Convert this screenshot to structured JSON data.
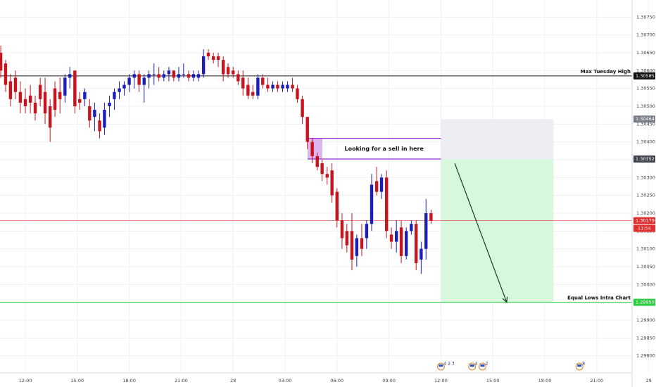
{
  "chart_data": {
    "type": "candlestick",
    "title": "",
    "xlabel": "",
    "ylabel": "",
    "ylim": [
      1.29752,
      1.30798
    ],
    "y_ticks": [
      "1.30750",
      "1.30700",
      "1.30650",
      "1.30600",
      "1.30550",
      "1.30500",
      "1.30450",
      "1.30400",
      "1.30350",
      "1.30300",
      "1.30250",
      "1.30200",
      "1.30150",
      "1.30100",
      "1.30050",
      "1.30000",
      "1.29950",
      "1.29900",
      "1.29850",
      "1.29800"
    ],
    "x_ticks": [
      "12:00",
      "15:00",
      "18:00",
      "21:00",
      "28",
      "03:00",
      "06:00",
      "09:00",
      "12:00",
      "15:00",
      "18:00",
      "21:00",
      "29"
    ],
    "x_tick_hours": [
      0,
      3,
      6,
      9,
      12,
      15,
      18,
      21,
      24,
      27,
      30,
      33,
      36
    ],
    "candles": [
      {
        "t": -1.42,
        "o": 1.3065,
        "h": 1.3067,
        "l": 1.3058,
        "c": 1.306
      },
      {
        "t": -1.14,
        "o": 1.3062,
        "h": 1.3063,
        "l": 1.3054,
        "c": 1.3056
      },
      {
        "t": -0.86,
        "o": 1.3057,
        "h": 1.3059,
        "l": 1.305,
        "c": 1.3052
      },
      {
        "t": -0.57,
        "o": 1.3058,
        "h": 1.306,
        "l": 1.3052,
        "c": 1.3054
      },
      {
        "t": -0.29,
        "o": 1.3054,
        "h": 1.3057,
        "l": 1.3048,
        "c": 1.3051
      },
      {
        "t": 0.0,
        "o": 1.3052,
        "h": 1.3055,
        "l": 1.3048,
        "c": 1.305
      },
      {
        "t": 0.29,
        "o": 1.3053,
        "h": 1.3056,
        "l": 1.3048,
        "c": 1.3051
      },
      {
        "t": 0.57,
        "o": 1.3051,
        "h": 1.3053,
        "l": 1.3046,
        "c": 1.3048
      },
      {
        "t": 0.86,
        "o": 1.3056,
        "h": 1.3058,
        "l": 1.305,
        "c": 1.3052
      },
      {
        "t": 1.14,
        "o": 1.3054,
        "h": 1.3058,
        "l": 1.3045,
        "c": 1.3048
      },
      {
        "t": 1.43,
        "o": 1.305,
        "h": 1.3052,
        "l": 1.304,
        "c": 1.3044
      },
      {
        "t": 1.71,
        "o": 1.3055,
        "h": 1.3057,
        "l": 1.3047,
        "c": 1.3049
      },
      {
        "t": 2.0,
        "o": 1.3054,
        "h": 1.3058,
        "l": 1.3048,
        "c": 1.3052
      },
      {
        "t": 2.29,
        "o": 1.3053,
        "h": 1.3059,
        "l": 1.3051,
        "c": 1.3058
      },
      {
        "t": 2.57,
        "o": 1.3058,
        "h": 1.3061,
        "l": 1.3055,
        "c": 1.3059
      },
      {
        "t": 2.86,
        "o": 1.306,
        "h": 1.306,
        "l": 1.3048,
        "c": 1.305
      },
      {
        "t": 3.14,
        "o": 1.3052,
        "h": 1.3054,
        "l": 1.3049,
        "c": 1.3051
      },
      {
        "t": 3.43,
        "o": 1.3052,
        "h": 1.3055,
        "l": 1.305,
        "c": 1.3054
      },
      {
        "t": 3.71,
        "o": 1.305,
        "h": 1.3052,
        "l": 1.3044,
        "c": 1.3046
      },
      {
        "t": 4.0,
        "o": 1.3047,
        "h": 1.3051,
        "l": 1.3043,
        "c": 1.3049
      },
      {
        "t": 4.29,
        "o": 1.3046,
        "h": 1.3048,
        "l": 1.3041,
        "c": 1.3043
      },
      {
        "t": 4.57,
        "o": 1.3044,
        "h": 1.3051,
        "l": 1.3042,
        "c": 1.3049
      },
      {
        "t": 4.86,
        "o": 1.305,
        "h": 1.3053,
        "l": 1.3047,
        "c": 1.3051
      },
      {
        "t": 5.14,
        "o": 1.3052,
        "h": 1.3055,
        "l": 1.3049,
        "c": 1.3054
      },
      {
        "t": 5.43,
        "o": 1.3054,
        "h": 1.3057,
        "l": 1.3052,
        "c": 1.3055
      },
      {
        "t": 5.71,
        "o": 1.3055,
        "h": 1.3057,
        "l": 1.3053,
        "c": 1.3056
      },
      {
        "t": 6.0,
        "o": 1.3056,
        "h": 1.3059,
        "l": 1.3054,
        "c": 1.3058
      },
      {
        "t": 6.29,
        "o": 1.3058,
        "h": 1.306,
        "l": 1.3055,
        "c": 1.3059
      },
      {
        "t": 6.57,
        "o": 1.3059,
        "h": 1.306,
        "l": 1.3054,
        "c": 1.3056
      },
      {
        "t": 6.86,
        "o": 1.3056,
        "h": 1.3059,
        "l": 1.3051,
        "c": 1.3058
      },
      {
        "t": 7.14,
        "o": 1.3058,
        "h": 1.306,
        "l": 1.3055,
        "c": 1.3059
      },
      {
        "t": 7.43,
        "o": 1.3059,
        "h": 1.3062,
        "l": 1.3056,
        "c": 1.3059
      },
      {
        "t": 7.71,
        "o": 1.3059,
        "h": 1.3061,
        "l": 1.3057,
        "c": 1.3058
      },
      {
        "t": 8.0,
        "o": 1.3058,
        "h": 1.306,
        "l": 1.3057,
        "c": 1.3059
      },
      {
        "t": 8.29,
        "o": 1.3059,
        "h": 1.3061,
        "l": 1.3057,
        "c": 1.306
      },
      {
        "t": 8.57,
        "o": 1.306,
        "h": 1.306,
        "l": 1.3057,
        "c": 1.3058
      },
      {
        "t": 8.86,
        "o": 1.3058,
        "h": 1.3061,
        "l": 1.3057,
        "c": 1.3059
      },
      {
        "t": 9.14,
        "o": 1.3059,
        "h": 1.3062,
        "l": 1.3058,
        "c": 1.3059
      },
      {
        "t": 9.43,
        "o": 1.3059,
        "h": 1.306,
        "l": 1.3057,
        "c": 1.3058
      },
      {
        "t": 9.71,
        "o": 1.3058,
        "h": 1.306,
        "l": 1.3057,
        "c": 1.3059
      },
      {
        "t": 10.0,
        "o": 1.3058,
        "h": 1.306,
        "l": 1.3057,
        "c": 1.3059
      },
      {
        "t": 10.29,
        "o": 1.3059,
        "h": 1.3066,
        "l": 1.3058,
        "c": 1.3064
      },
      {
        "t": 10.57,
        "o": 1.3065,
        "h": 1.3066,
        "l": 1.3063,
        "c": 1.3064
      },
      {
        "t": 10.86,
        "o": 1.3064,
        "h": 1.3065,
        "l": 1.3062,
        "c": 1.3063
      },
      {
        "t": 11.14,
        "o": 1.3064,
        "h": 1.3065,
        "l": 1.3061,
        "c": 1.3063
      },
      {
        "t": 11.43,
        "o": 1.3063,
        "h": 1.3064,
        "l": 1.3057,
        "c": 1.3059
      },
      {
        "t": 11.71,
        "o": 1.3061,
        "h": 1.3062,
        "l": 1.3058,
        "c": 1.3059
      },
      {
        "t": 12.0,
        "o": 1.306,
        "h": 1.3061,
        "l": 1.3058,
        "c": 1.3059
      },
      {
        "t": 12.29,
        "o": 1.3059,
        "h": 1.306,
        "l": 1.3056,
        "c": 1.3057
      },
      {
        "t": 12.57,
        "o": 1.3058,
        "h": 1.306,
        "l": 1.3053,
        "c": 1.3055
      },
      {
        "t": 12.86,
        "o": 1.3056,
        "h": 1.3058,
        "l": 1.3052,
        "c": 1.3053
      },
      {
        "t": 13.14,
        "o": 1.3054,
        "h": 1.3056,
        "l": 1.3052,
        "c": 1.3053
      },
      {
        "t": 13.43,
        "o": 1.3053,
        "h": 1.3059,
        "l": 1.3052,
        "c": 1.3058
      },
      {
        "t": 13.71,
        "o": 1.3058,
        "h": 1.3059,
        "l": 1.3055,
        "c": 1.3056
      },
      {
        "t": 14.0,
        "o": 1.3056,
        "h": 1.3058,
        "l": 1.3054,
        "c": 1.3055
      },
      {
        "t": 14.29,
        "o": 1.3055,
        "h": 1.3057,
        "l": 1.3054,
        "c": 1.3056
      },
      {
        "t": 14.57,
        "o": 1.3056,
        "h": 1.3057,
        "l": 1.3054,
        "c": 1.3055
      },
      {
        "t": 14.86,
        "o": 1.3055,
        "h": 1.3057,
        "l": 1.3054,
        "c": 1.3056
      },
      {
        "t": 15.14,
        "o": 1.3055,
        "h": 1.3057,
        "l": 1.3054,
        "c": 1.3056
      },
      {
        "t": 15.43,
        "o": 1.3056,
        "h": 1.3058,
        "l": 1.3054,
        "c": 1.3055
      },
      {
        "t": 15.71,
        "o": 1.3055,
        "h": 1.3056,
        "l": 1.3051,
        "c": 1.3052
      },
      {
        "t": 16.0,
        "o": 1.3052,
        "h": 1.3053,
        "l": 1.3045,
        "c": 1.3047
      },
      {
        "t": 16.29,
        "o": 1.3047,
        "h": 1.3047,
        "l": 1.3038,
        "c": 1.304
      },
      {
        "t": 16.57,
        "o": 1.304,
        "h": 1.3041,
        "l": 1.3034,
        "c": 1.3036
      },
      {
        "t": 16.86,
        "o": 1.3036,
        "h": 1.3037,
        "l": 1.3032,
        "c": 1.3033
      },
      {
        "t": 17.14,
        "o": 1.3034,
        "h": 1.3035,
        "l": 1.3029,
        "c": 1.3031
      },
      {
        "t": 17.43,
        "o": 1.3031,
        "h": 1.3033,
        "l": 1.3028,
        "c": 1.303
      },
      {
        "t": 17.71,
        "o": 1.3032,
        "h": 1.3034,
        "l": 1.3023,
        "c": 1.3025
      },
      {
        "t": 18.0,
        "o": 1.3026,
        "h": 1.3027,
        "l": 1.3016,
        "c": 1.3018
      },
      {
        "t": 18.29,
        "o": 1.3018,
        "h": 1.302,
        "l": 1.301,
        "c": 1.3013
      },
      {
        "t": 18.57,
        "o": 1.3015,
        "h": 1.3017,
        "l": 1.3009,
        "c": 1.3011
      },
      {
        "t": 18.86,
        "o": 1.3015,
        "h": 1.302,
        "l": 1.3004,
        "c": 1.3007
      },
      {
        "t": 19.14,
        "o": 1.3008,
        "h": 1.3014,
        "l": 1.3005,
        "c": 1.3013
      },
      {
        "t": 19.43,
        "o": 1.3013,
        "h": 1.3017,
        "l": 1.3008,
        "c": 1.301
      },
      {
        "t": 19.71,
        "o": 1.3013,
        "h": 1.3018,
        "l": 1.301,
        "c": 1.3017
      },
      {
        "t": 20.0,
        "o": 1.3017,
        "h": 1.3031,
        "l": 1.3015,
        "c": 1.3028
      },
      {
        "t": 20.29,
        "o": 1.3029,
        "h": 1.3033,
        "l": 1.3025,
        "c": 1.3026
      },
      {
        "t": 20.57,
        "o": 1.3026,
        "h": 1.3031,
        "l": 1.3024,
        "c": 1.303
      },
      {
        "t": 20.86,
        "o": 1.303,
        "h": 1.3032,
        "l": 1.3013,
        "c": 1.3015
      },
      {
        "t": 21.14,
        "o": 1.3014,
        "h": 1.3016,
        "l": 1.301,
        "c": 1.3012
      },
      {
        "t": 21.43,
        "o": 1.3012,
        "h": 1.3018,
        "l": 1.3009,
        "c": 1.3015
      },
      {
        "t": 21.71,
        "o": 1.3016,
        "h": 1.3018,
        "l": 1.3006,
        "c": 1.3008
      },
      {
        "t": 22.0,
        "o": 1.3008,
        "h": 1.3016,
        "l": 1.3007,
        "c": 1.3015
      },
      {
        "t": 22.29,
        "o": 1.3015,
        "h": 1.3018,
        "l": 1.3014,
        "c": 1.3017
      },
      {
        "t": 22.57,
        "o": 1.3017,
        "h": 1.3018,
        "l": 1.3004,
        "c": 1.3006
      },
      {
        "t": 22.86,
        "o": 1.3007,
        "h": 1.3012,
        "l": 1.3003,
        "c": 1.301
      },
      {
        "t": 23.14,
        "o": 1.301,
        "h": 1.3024,
        "l": 1.3007,
        "c": 1.302
      },
      {
        "t": 23.43,
        "o": 1.302,
        "h": 1.3021,
        "l": 1.3017,
        "c": 1.30179
      }
    ],
    "horizontal_lines": [
      {
        "price": 1.30585,
        "label": "Max Tuesday High",
        "price_label": "1.30585",
        "color": "#1a1a1a"
      },
      {
        "price": 1.2995,
        "label": "Equal Lows Intra Chart",
        "price_label": "1.29950",
        "color": "#2ecc40"
      }
    ],
    "current_price": {
      "price": 1.30179,
      "label": "1.30179",
      "countdown": "11:54",
      "color": "#e03030"
    },
    "zone": {
      "t0": 16.3,
      "t1": 24.0,
      "p_top": 1.3041,
      "p_bot": 1.30352,
      "text": "Looking for a sell in here",
      "color": "#9b30d9"
    },
    "position": {
      "t0": 24.0,
      "t1": 30.5,
      "entry": 1.30352,
      "stop": 1.30464,
      "target": 1.2995,
      "entry_label": "1.30352",
      "stop_label": "1.30464"
    },
    "arrow": {
      "t0": 24.8,
      "p0": 1.3034,
      "t1": 27.8,
      "p1": 1.2995
    },
    "event_markers": [
      {
        "t": 24.0,
        "text": "4 2 3"
      },
      {
        "t": 25.8,
        "text": "4"
      },
      {
        "t": 26.4,
        "text": "2"
      },
      {
        "t": 32.0,
        "text": "8"
      }
    ],
    "colors": {
      "bull": "#1c1fb5",
      "bear": "#c8141e",
      "grid": "#eef0f4",
      "axis_text": "#404040"
    }
  }
}
